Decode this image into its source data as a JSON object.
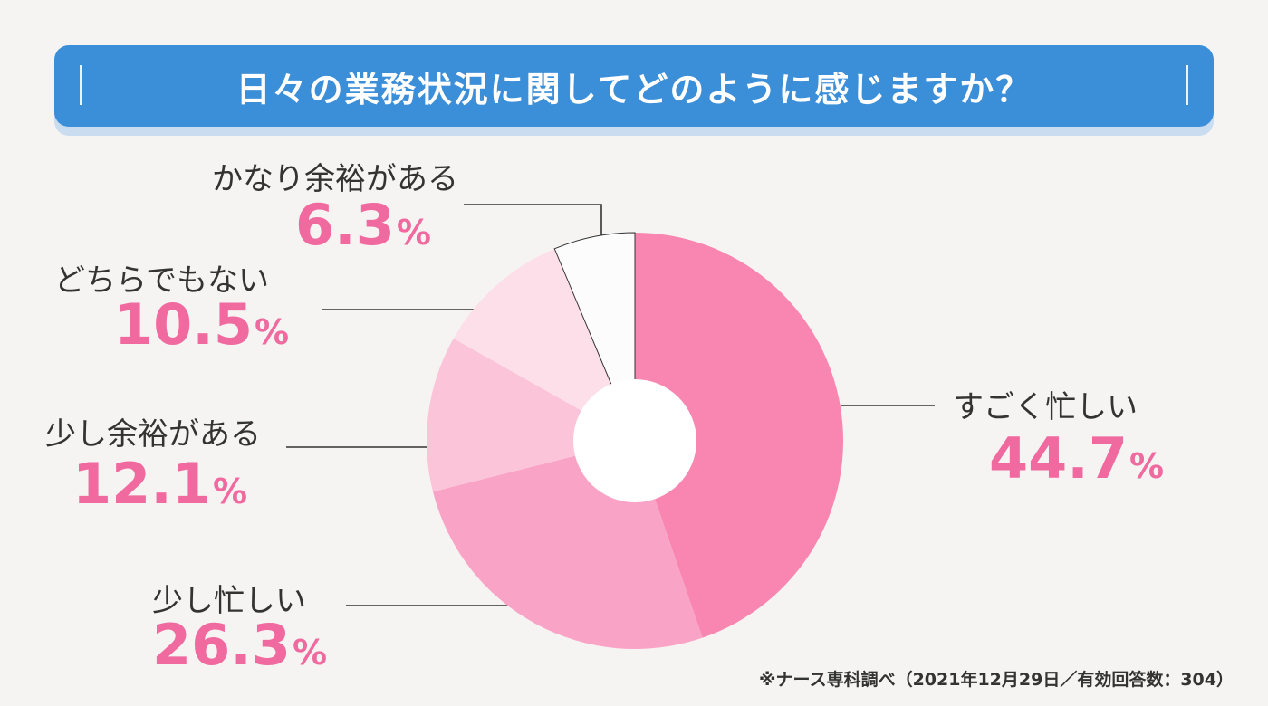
{
  "title": "日々の業務状況に関してどのように感じますか？",
  "footnote": "※ナース専科調べ（2021年12月29日／有効回答数：304）",
  "colors": {
    "banner": "#3b8ed8",
    "percent_text": "#f06a9f",
    "slice_1": "#f986b1",
    "slice_2": "#f9a4c6",
    "slice_3": "#fcc4d9",
    "slice_4": "#fddfe9",
    "slice_5": "#fdfcfc"
  },
  "chart_data": {
    "type": "pie",
    "title": "日々の業務状況に関してどのように感じますか？",
    "unit": "%",
    "slices": [
      {
        "label": "すごく忙しい",
        "value": 44.7,
        "display": "44.7"
      },
      {
        "label": "少し忙しい",
        "value": 26.3,
        "display": "26.3"
      },
      {
        "label": "少し余裕がある",
        "value": 12.1,
        "display": "12.1"
      },
      {
        "label": "どちらでもない",
        "value": 10.5,
        "display": "10.5"
      },
      {
        "label": "かなり余裕がある",
        "value": 6.3,
        "display": "6.3"
      }
    ]
  }
}
